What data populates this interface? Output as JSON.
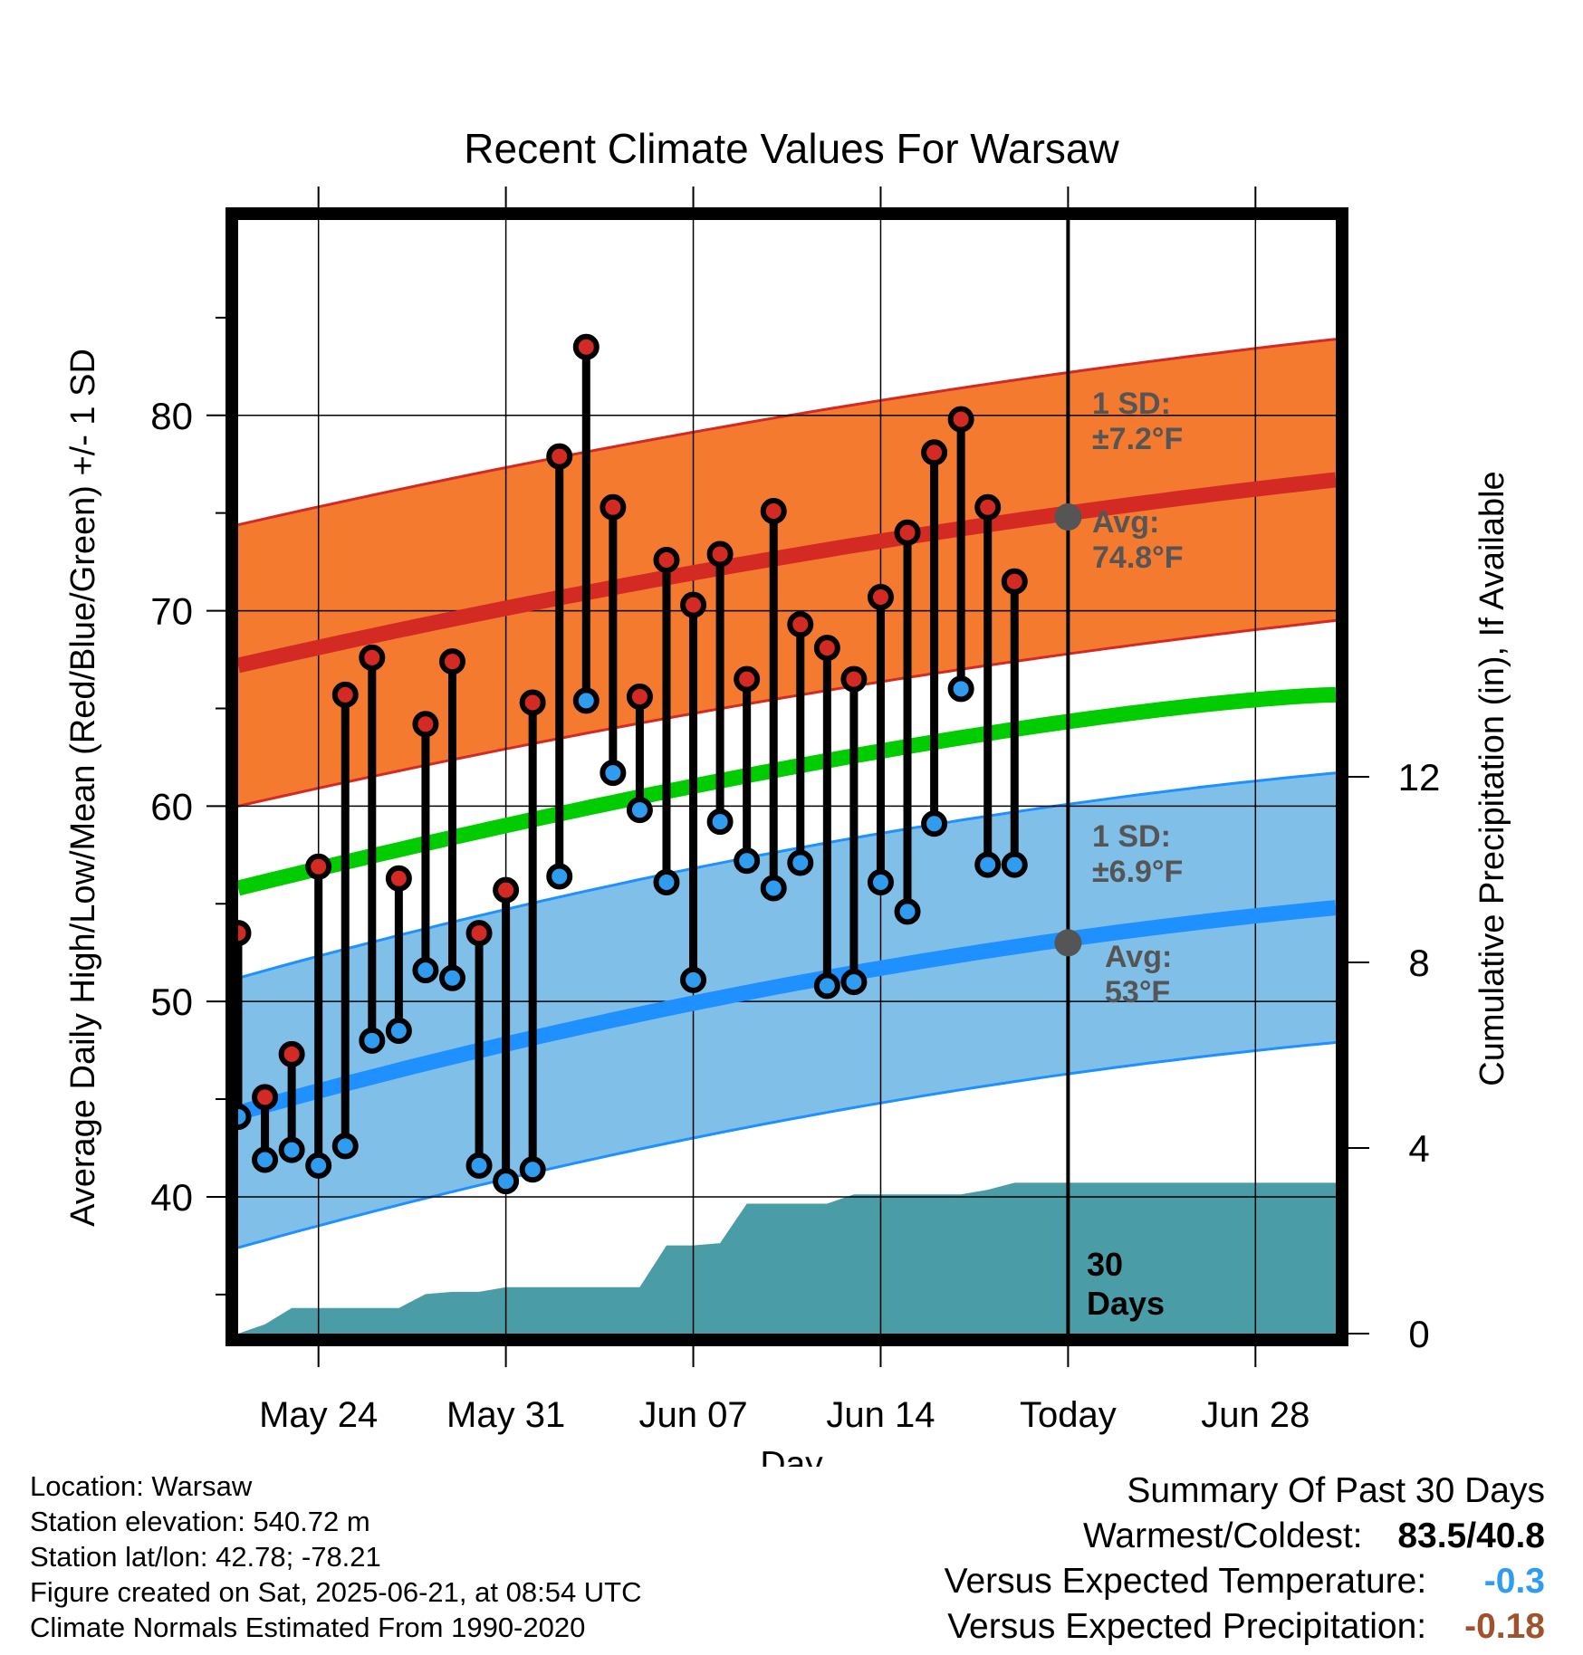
{
  "chart_data": {
    "type": "line",
    "title": "Recent Climate Values For Warsaw",
    "xlabel": "Day",
    "ylabel_left": "Average Daily High/Low/Mean (Red/Blue/Green) +/- 1 SD",
    "ylabel_right": "Cumulative Precipitation (in), If Available",
    "x_ticks": [
      "May 24",
      "May 31",
      "Jun 07",
      "Jun 14",
      "Today",
      "Jun 28"
    ],
    "y_ticks_left": [
      40,
      50,
      60,
      70,
      80
    ],
    "y_ticks_right": [
      0,
      4,
      8,
      12
    ],
    "ylim_left": [
      33,
      90
    ],
    "ylim_right": [
      0,
      24
    ],
    "x_range_days": [
      "2025-05-21",
      "2025-07-01"
    ],
    "today_label": "30\nDays",
    "daily_obs": {
      "dates": [
        "2025-05-21",
        "2025-05-22",
        "2025-05-23",
        "2025-05-24",
        "2025-05-25",
        "2025-05-26",
        "2025-05-27",
        "2025-05-28",
        "2025-05-29",
        "2025-05-30",
        "2025-05-31",
        "2025-06-01",
        "2025-06-02",
        "2025-06-03",
        "2025-06-04",
        "2025-06-05",
        "2025-06-06",
        "2025-06-07",
        "2025-06-08",
        "2025-06-09",
        "2025-06-10",
        "2025-06-11",
        "2025-06-12",
        "2025-06-13",
        "2025-06-14",
        "2025-06-15",
        "2025-06-16",
        "2025-06-17",
        "2025-06-18",
        "2025-06-19",
        "2025-06-20"
      ],
      "high": [
        53.5,
        45.1,
        47.3,
        56.9,
        65.7,
        67.6,
        56.3,
        64.2,
        67.4,
        53.5,
        55.7,
        65.3,
        77.9,
        83.5,
        75.3,
        65.6,
        72.6,
        70.3,
        72.9,
        66.5,
        75.1,
        69.3,
        68.1,
        66.5,
        70.7,
        74.0,
        78.1,
        79.8,
        75.3,
        71.5,
        null
      ],
      "low": [
        44.1,
        41.9,
        42.4,
        41.6,
        42.6,
        48.0,
        48.5,
        51.6,
        51.2,
        41.6,
        40.8,
        41.4,
        56.4,
        65.4,
        61.7,
        59.8,
        56.1,
        51.1,
        59.2,
        57.2,
        55.8,
        57.1,
        50.8,
        51.0,
        56.1,
        54.6,
        59.1,
        66.0,
        57.0,
        57.0,
        null
      ]
    },
    "normals": {
      "avg_high_start": 67.2,
      "avg_high_today": 74.8,
      "avg_high_end": 76.7,
      "avg_low_start": 44.3,
      "avg_low_today": 53.0,
      "avg_low_end": 54.8,
      "avg_mean_start": 55.8,
      "avg_mean_end": 65.7,
      "sd_high": 7.2,
      "sd_low": 6.9
    },
    "precip_cumulative": {
      "dates": [
        "2025-05-21",
        "2025-05-22",
        "2025-05-23",
        "2025-05-24",
        "2025-05-27",
        "2025-05-28",
        "2025-05-29",
        "2025-05-30",
        "2025-05-31",
        "2025-06-05",
        "2025-06-06",
        "2025-06-07",
        "2025-06-08",
        "2025-06-09",
        "2025-06-10",
        "2025-06-11",
        "2025-06-12",
        "2025-06-13",
        "2025-06-17",
        "2025-06-18",
        "2025-06-19",
        "2025-06-20",
        "2025-07-01"
      ],
      "values": [
        0.0,
        0.2,
        0.55,
        0.55,
        0.55,
        0.85,
        0.9,
        0.9,
        1.0,
        1.0,
        1.9,
        1.9,
        1.95,
        2.8,
        2.8,
        2.8,
        2.8,
        3.0,
        3.0,
        3.1,
        3.25,
        3.25,
        3.25
      ]
    },
    "annotations": {
      "high_sd_line1": "1 SD:",
      "high_sd_line2": "±7.2°F",
      "high_avg_line1": "Avg:",
      "high_avg_line2": "74.8°F",
      "low_sd_line1": "1 SD:",
      "low_sd_line2": "±6.9°F",
      "low_avg_line1": "Avg:",
      "low_avg_line2": "53°F",
      "days_line1": "30",
      "days_line2": "Days"
    },
    "colors": {
      "high_band": "#f47a30",
      "high_line": "#d42a24",
      "low_band": "#80c0e8",
      "low_line": "#1e90ff",
      "mean_line": "#00cc00",
      "precip": "#4a9ca6",
      "high_dot": "#d42a24",
      "low_dot": "#2f9cf0"
    },
    "grid": true
  },
  "footer": {
    "location": "Location: Warsaw",
    "elevation": "Station elevation: 540.72 m",
    "latlon": "Station lat/lon: 42.78; -78.21",
    "created": "Figure created on Sat, 2025-06-21, at 08:54 UTC",
    "normals": "Climate Normals Estimated From 1990-2020"
  },
  "summary": {
    "title": "Summary Of Past 30 Days",
    "warmest_label": "Warmest/Coldest:",
    "warmest_value": "83.5/40.8",
    "temp_label": "Versus Expected Temperature:",
    "temp_value": "-0.3",
    "precip_label": "Versus Expected Precipitation:",
    "precip_value": "-0.18"
  }
}
